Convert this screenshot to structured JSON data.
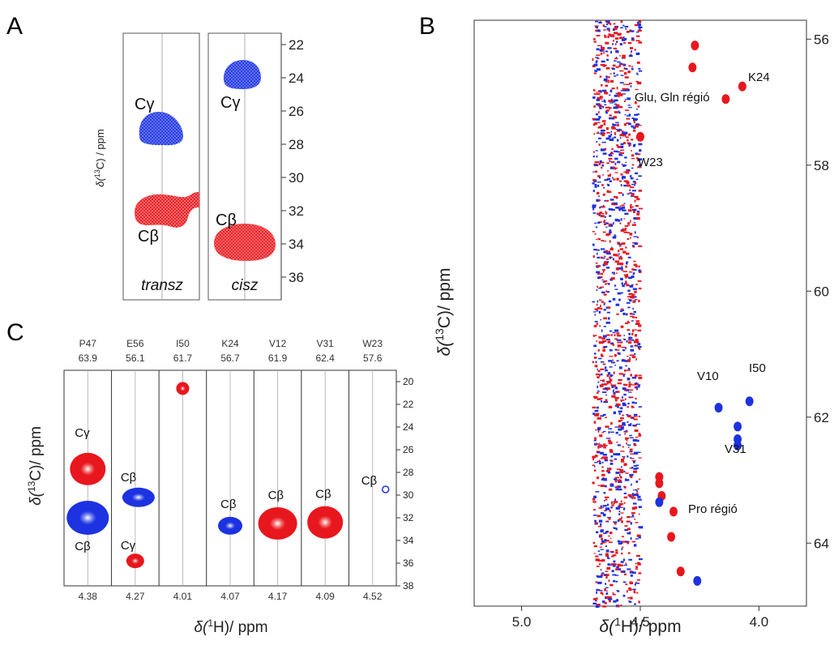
{
  "colors": {
    "trans_series": "#e8171d",
    "cis_series": "#1d32e0",
    "axis": "#333333",
    "grid": "#aaaaaa"
  },
  "panel_a": {
    "letter": "A",
    "ylabel": "δ(13C) / ppm",
    "ylabel_main": "δ(",
    "ylabel_sup": "13",
    "ylabel_tail": "C) / ppm",
    "strip_labels": [
      "transz",
      "cisz"
    ],
    "ticks": [
      "22",
      "24",
      "26",
      "28",
      "30",
      "32",
      "34",
      "36"
    ],
    "peak_labels": {
      "cg_trans": "Cγ",
      "cb_trans": "Cβ",
      "cg_cis": "Cγ",
      "cb_cis": "Cβ"
    }
  },
  "panel_b": {
    "letter": "B",
    "xlabel_main": "δ(",
    "xlabel_sup": "1",
    "xlabel_tail": "H)/ ppm",
    "ylabel_main": "δ(",
    "ylabel_sup": "13",
    "ylabel_tail": "C)/ ppm",
    "x_ticks": [
      "5.0",
      "4.5",
      "4.0"
    ],
    "y_ticks": [
      "56",
      "58",
      "60",
      "62",
      "64"
    ],
    "annotations": [
      "K24",
      "Glu, Gln régió",
      "W23",
      "V10",
      "I50",
      "V31",
      "Pro régió"
    ]
  },
  "panel_c": {
    "letter": "C",
    "ylabel_main": "δ(",
    "ylabel_sup": "13",
    "ylabel_tail": "C)/ ppm",
    "xlabel_main": "δ(",
    "xlabel_sup": "1",
    "xlabel_tail": "H)/ ppm",
    "y_ticks": [
      "20",
      "22",
      "24",
      "26",
      "28",
      "30",
      "32",
      "34",
      "36",
      "38"
    ],
    "strips": [
      {
        "residue": "P47",
        "c_shift": "63.9",
        "h_shift": "4.38"
      },
      {
        "residue": "E56",
        "c_shift": "56.1",
        "h_shift": "4.27"
      },
      {
        "residue": "I50",
        "c_shift": "61.7",
        "h_shift": "4.01"
      },
      {
        "residue": "K24",
        "c_shift": "56.7",
        "h_shift": "4.07"
      },
      {
        "residue": "V12",
        "c_shift": "61.9",
        "h_shift": "4.17"
      },
      {
        "residue": "V31",
        "c_shift": "62.4",
        "h_shift": "4.09"
      },
      {
        "residue": "W23",
        "c_shift": "57.6",
        "h_shift": "4.52"
      }
    ],
    "peak_labels": [
      "Cγ",
      "Cβ",
      "Cβ",
      "Cγ",
      "Cβ",
      "Cβ",
      "Cβ",
      "Cβ"
    ]
  },
  "chart_data": [
    {
      "type": "scatter",
      "panel": "A",
      "ylabel": "δ(13C) / ppm",
      "ylim": [
        37,
        21
      ],
      "strips": [
        {
          "name": "transz",
          "peaks": [
            {
              "label": "Cγ",
              "y": 27.2,
              "color": "cis"
            },
            {
              "label": "Cβ",
              "y": 32.0,
              "color": "trans"
            }
          ]
        },
        {
          "name": "cisz",
          "peaks": [
            {
              "label": "Cγ",
              "y": 24.1,
              "color": "cis"
            },
            {
              "label": "Cβ",
              "y": 34.0,
              "color": "trans"
            }
          ]
        }
      ]
    },
    {
      "type": "scatter",
      "panel": "B",
      "xlabel": "δ(1H)/ ppm",
      "ylabel": "δ(13C)/ ppm",
      "xlim": [
        5.2,
        3.8
      ],
      "ylim": [
        55.7,
        65.0
      ],
      "series": [
        {
          "name": "",
          "color": "trans",
          "points": [
            [
              4.27,
              56.1
            ],
            [
              4.28,
              56.45
            ],
            [
              4.07,
              56.75
            ],
            [
              4.14,
              56.95
            ],
            [
              4.5,
              57.55
            ],
            [
              4.42,
              62.95
            ],
            [
              4.42,
              63.05
            ],
            [
              4.41,
              63.25
            ],
            [
              4.36,
              63.5
            ],
            [
              4.37,
              63.9
            ],
            [
              4.33,
              64.45
            ]
          ]
        },
        {
          "name": "",
          "color": "cis",
          "points": [
            [
              4.17,
              61.85
            ],
            [
              4.04,
              61.75
            ],
            [
              4.09,
              62.15
            ],
            [
              4.09,
              62.35
            ],
            [
              4.09,
              62.45
            ],
            [
              4.42,
              63.35
            ],
            [
              4.26,
              64.6
            ]
          ]
        }
      ]
    },
    {
      "type": "scatter",
      "panel": "C",
      "ylabel": "δ(13C)/ ppm",
      "xlabel": "δ(1H)/ ppm",
      "ylim": [
        19,
        38
      ],
      "strips": [
        {
          "residue": "P47",
          "peaks": [
            {
              "label": "Cγ",
              "y": 27.7,
              "color": "trans"
            },
            {
              "label": "Cβ",
              "y": 32.0,
              "color": "cis"
            }
          ]
        },
        {
          "residue": "E56",
          "peaks": [
            {
              "label": "Cβ",
              "y": 30.2,
              "color": "cis"
            },
            {
              "label": "Cγ",
              "y": 35.8,
              "color": "trans"
            }
          ]
        },
        {
          "residue": "I50",
          "peaks": [
            {
              "label": "",
              "y": 20.6,
              "color": "trans"
            }
          ]
        },
        {
          "residue": "K24",
          "peaks": [
            {
              "label": "Cβ",
              "y": 32.7,
              "color": "cis"
            }
          ]
        },
        {
          "residue": "V12",
          "peaks": [
            {
              "label": "Cβ",
              "y": 32.5,
              "color": "trans"
            }
          ]
        },
        {
          "residue": "V31",
          "peaks": [
            {
              "label": "Cβ",
              "y": 32.4,
              "color": "trans"
            }
          ]
        },
        {
          "residue": "W23",
          "peaks": [
            {
              "label": "Cβ",
              "y": 29.5,
              "color": "cis"
            }
          ]
        }
      ]
    }
  ]
}
